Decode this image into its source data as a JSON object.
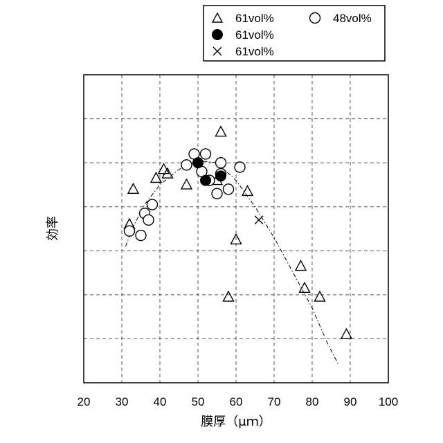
{
  "chart_data": {
    "type": "scatter",
    "title": "",
    "xlabel": "膜厚（μｍ）",
    "ylabel": "効率",
    "xlim": [
      20,
      100
    ],
    "ylim": [
      0,
      7
    ],
    "xticks": [
      "20",
      "30",
      "40",
      "50",
      "60",
      "70",
      "80",
      "90",
      "100"
    ],
    "grid": true,
    "legend_position": "top-right",
    "series": [
      {
        "name": "61vol%",
        "marker": "triangle-open",
        "color": "#000000",
        "x": [
          32,
          33,
          39,
          41,
          42,
          47,
          55,
          56,
          60,
          63,
          58,
          77,
          78,
          82,
          89
        ],
        "y": [
          3.6,
          4.4,
          4.65,
          4.85,
          4.75,
          4.5,
          4.6,
          5.7,
          3.25,
          4.35,
          1.95,
          2.65,
          2.15,
          1.95,
          1.1
        ]
      },
      {
        "name": "48vol%",
        "marker": "circle-open",
        "color": "#000000",
        "x": [
          32,
          35,
          36,
          37,
          38,
          47,
          49,
          51,
          52,
          53,
          55,
          56,
          56,
          58,
          61
        ],
        "y": [
          3.45,
          3.35,
          3.85,
          3.7,
          4.05,
          4.95,
          5.2,
          4.8,
          5.2,
          4.6,
          4.3,
          4.75,
          5.0,
          4.4,
          4.9
        ]
      },
      {
        "name": "61vol%",
        "marker": "circle-filled",
        "color": "#000000",
        "x": [
          50,
          52,
          56
        ],
        "y": [
          5.0,
          4.6,
          4.7
        ]
      },
      {
        "name": "61vol%",
        "marker": "cross",
        "color": "#000000",
        "x": [
          66
        ],
        "y": [
          3.7
        ]
      }
    ],
    "trend_curve": {
      "style": "dash-dot",
      "x": [
        31,
        33,
        36,
        40,
        45,
        50,
        55,
        60,
        65,
        70,
        75,
        80,
        84,
        87
      ],
      "y": [
        3.1,
        3.55,
        4.05,
        4.5,
        4.85,
        5.05,
        5.0,
        4.6,
        4.0,
        3.3,
        2.5,
        1.7,
        0.9,
        0.4
      ]
    }
  }
}
